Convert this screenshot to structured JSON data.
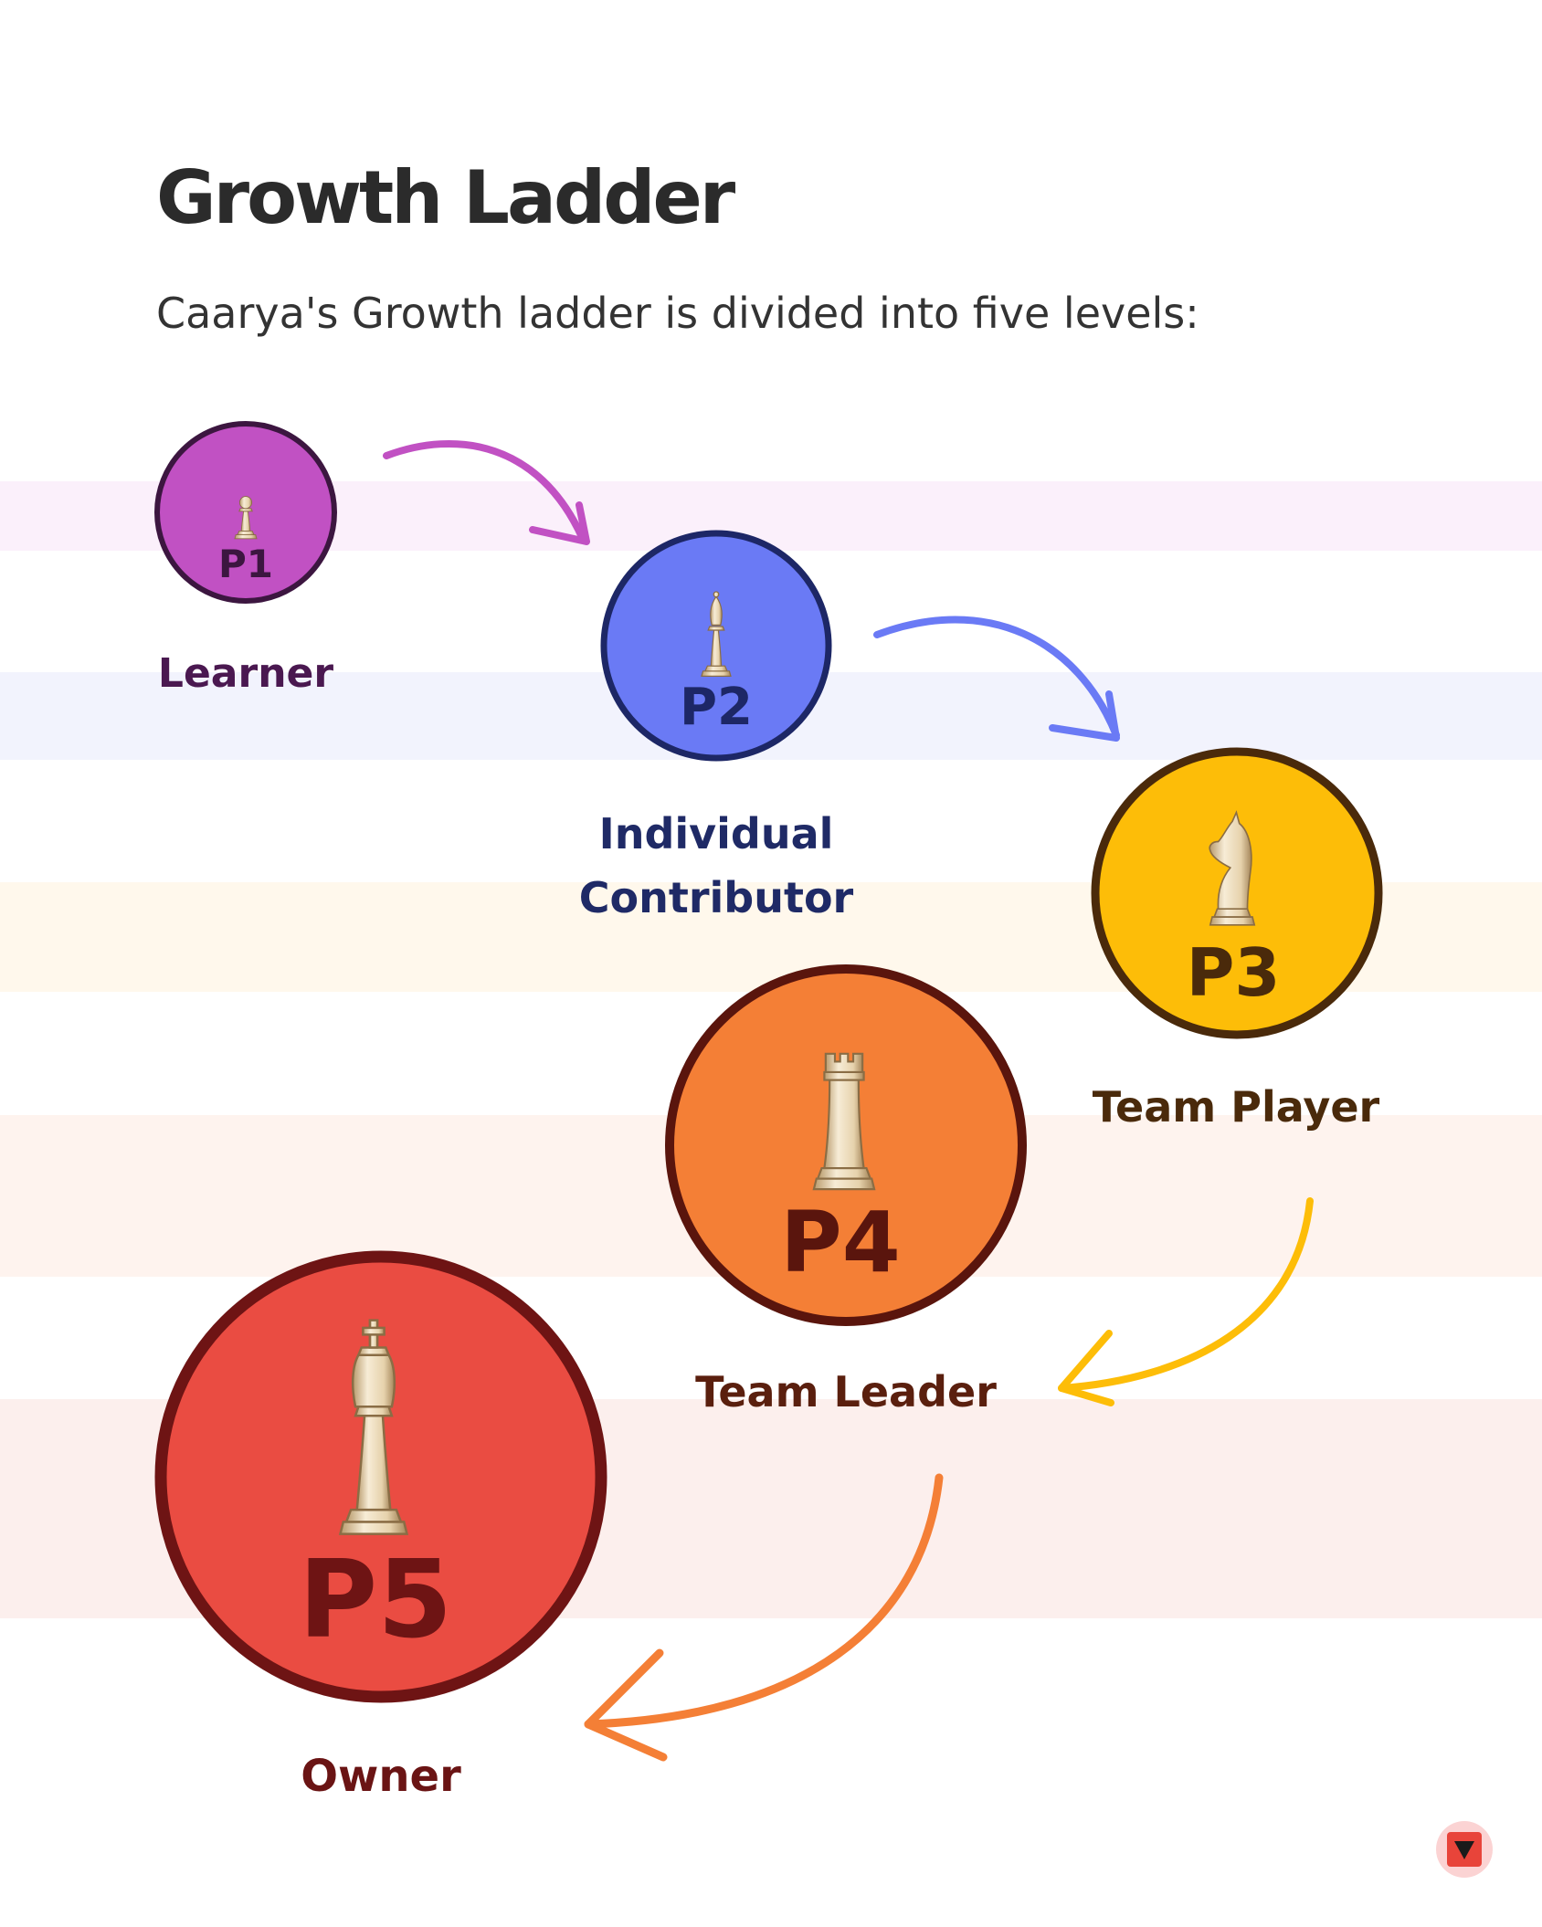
{
  "header": {
    "title": "Growth Ladder",
    "subtitle": "Caarya's Growth ladder is divided into five levels:"
  },
  "levels": [
    {
      "code": "P1",
      "name": "Learner",
      "piece": "pawn-icon",
      "fill": "#c151c3",
      "ring": "#3c1640",
      "label_color": "#4a1850",
      "band": "#fbf0fb"
    },
    {
      "code": "P2",
      "name_lines": [
        "Individual",
        "Contributor"
      ],
      "piece": "bishop-icon",
      "fill": "#6a7af5",
      "ring": "#1d2766",
      "label_color": "#1f2a66",
      "band": "#f2f3fd"
    },
    {
      "code": "P3",
      "name": "Team Player",
      "piece": "knight-icon",
      "fill": "#fdbd08",
      "ring": "#4a2a0b",
      "label_color": "#4a2a0b",
      "band": "#fff8ec"
    },
    {
      "code": "P4",
      "name": "Team Leader",
      "piece": "rook-icon",
      "fill": "#f47f36",
      "ring": "#5a150d",
      "label_color": "#5a1f0e",
      "band": "#fef3ee"
    },
    {
      "code": "P5",
      "name": "Owner",
      "piece": "king-icon",
      "fill": "#ea4c42",
      "ring": "#6e1414",
      "label_color": "#6a1414",
      "band": "#fcefed"
    }
  ],
  "arrows": [
    {
      "from": "P1",
      "to": "P2",
      "color": "#c151c3"
    },
    {
      "from": "P2",
      "to": "P3",
      "color": "#6a7af5"
    },
    {
      "from": "P3",
      "to": "P4",
      "color": "#fdbd08"
    },
    {
      "from": "P4",
      "to": "P5",
      "color": "#f47f36"
    }
  ],
  "scroll_button": {
    "icon": "triangle-down-icon",
    "bg": "#fbd3d3",
    "fg": "#e8443a"
  }
}
